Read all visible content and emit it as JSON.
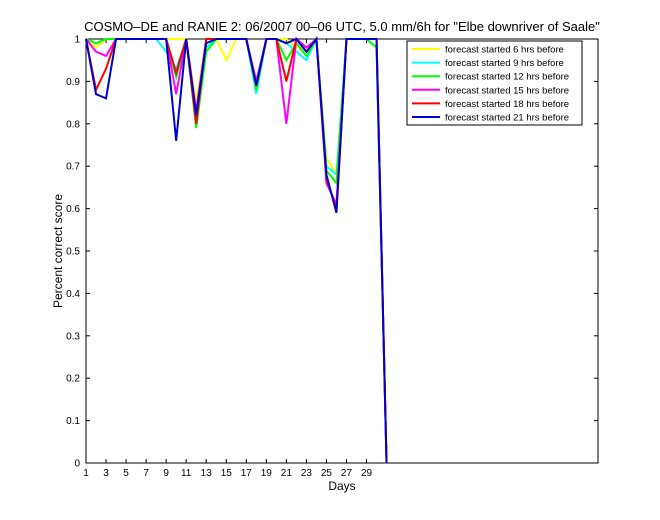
{
  "chart_data": {
    "type": "line",
    "title": "COSMO–DE and RANIE 2: 06/2007 00–06 UTC, 5.0 mm/6h for \"Elbe downriver of Saale\"",
    "xlabel": "Days",
    "ylabel": "Percent correct score",
    "xlim": [
      1,
      31
    ],
    "ylim": [
      0,
      1
    ],
    "x_ticks": [
      "1",
      "3",
      "5",
      "7",
      "9",
      "11",
      "13",
      "15",
      "17",
      "19",
      "21",
      "23",
      "25",
      "27",
      "29"
    ],
    "y_ticks": [
      "0",
      "0.1",
      "0.2",
      "0.3",
      "0.4",
      "0.5",
      "0.6",
      "0.7",
      "0.8",
      "0.9",
      "1"
    ],
    "legend_position": "top-right",
    "x": [
      1,
      2,
      3,
      4,
      5,
      6,
      7,
      8,
      9,
      10,
      11,
      12,
      13,
      14,
      15,
      16,
      17,
      18,
      19,
      20,
      21,
      22,
      23,
      24,
      25,
      26,
      27,
      28,
      29,
      30,
      31
    ],
    "series": [
      {
        "name": "forecast started 6 hrs before",
        "color": "#ffff00",
        "values": [
          1,
          0.98,
          1,
          1,
          1,
          1,
          1,
          1,
          1,
          1,
          1,
          0.85,
          1,
          1,
          0.95,
          1,
          1,
          0.89,
          1,
          1,
          1,
          0.98,
          0.98,
          1,
          0.72,
          0.68,
          1,
          1,
          1,
          0.98,
          0
        ]
      },
      {
        "name": "forecast started 9 hrs before",
        "color": "#00ffff",
        "values": [
          1,
          0.99,
          1,
          1,
          1,
          1,
          1,
          1,
          0.97,
          0.93,
          1,
          0.81,
          0.98,
          1,
          1,
          1,
          1,
          0.87,
          1,
          1,
          0.99,
          0.97,
          0.95,
          1,
          0.7,
          0.68,
          1,
          1,
          1,
          0.98,
          0
        ]
      },
      {
        "name": "forecast started 12 hrs before",
        "color": "#00ff00",
        "values": [
          1,
          0.99,
          1,
          1,
          1,
          1,
          1,
          1,
          1,
          0.91,
          1,
          0.79,
          0.97,
          1,
          1,
          1,
          1,
          0.88,
          1,
          1,
          0.95,
          0.99,
          0.96,
          1,
          0.69,
          0.66,
          1,
          1,
          1,
          0.98,
          0
        ]
      },
      {
        "name": "forecast started 15 hrs before",
        "color": "#ff00ff",
        "values": [
          1,
          0.97,
          0.96,
          1,
          1,
          1,
          1,
          1,
          1,
          0.87,
          1,
          0.83,
          1,
          1,
          1,
          1,
          1,
          0.9,
          1,
          1,
          0.8,
          1,
          0.98,
          1,
          0.66,
          0.61,
          1,
          1,
          1,
          1,
          0
        ]
      },
      {
        "name": "forecast started 18 hrs before",
        "color": "#ff0000",
        "values": [
          1,
          0.88,
          0.93,
          1,
          1,
          1,
          1,
          1,
          1,
          0.92,
          1,
          0.8,
          1,
          1,
          1,
          1,
          1,
          0.89,
          1,
          1,
          0.9,
          1,
          0.97,
          1,
          0.67,
          0.6,
          1,
          1,
          1,
          1,
          0
        ]
      },
      {
        "name": "forecast started 21 hrs before",
        "color": "#0000cd",
        "values": [
          1,
          0.87,
          0.86,
          1,
          1,
          1,
          1,
          1,
          1,
          0.76,
          1,
          0.82,
          0.99,
          1,
          1,
          1,
          1,
          0.89,
          1,
          1,
          0.99,
          1,
          0.97,
          1,
          0.68,
          0.59,
          1,
          1,
          1,
          1,
          0
        ]
      }
    ]
  }
}
